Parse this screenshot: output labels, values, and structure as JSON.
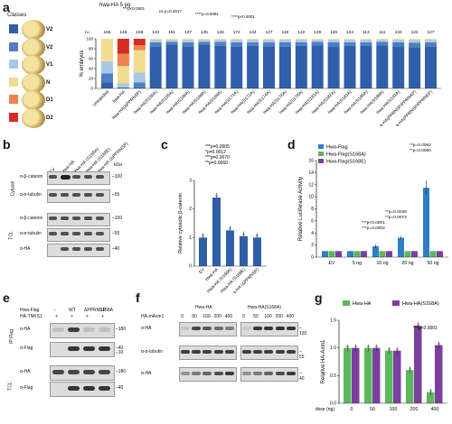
{
  "panel_a": {
    "label": "a",
    "classes_title": "Classes",
    "construct_title": "hwa-HA 5 pg",
    "classes": [
      {
        "name": "V2",
        "color": "#2f5fa8"
      },
      {
        "name": "V2",
        "color": "#4f7fc4"
      },
      {
        "name": "V1",
        "color": "#a8c8e4"
      },
      {
        "name": "N",
        "color": "#f2dc8e"
      },
      {
        "name": "D1",
        "color": "#ef8250"
      },
      {
        "name": "D2",
        "color": "#d62d20"
      }
    ],
    "pvalue_labels": [
      "***p<0.0001",
      "ns p=0.4917",
      "****p=0.0091",
      "****p<0.0001"
    ]
  },
  "chart_data": [
    {
      "type": "bar",
      "stacked": true,
      "ylabel": "% embryos",
      "ylim": [
        0,
        100
      ],
      "n_prefix": "n=",
      "n": [
        165,
        148,
        156,
        143,
        151,
        137,
        135,
        126,
        172,
        134,
        127,
        119,
        122,
        129,
        126,
        134,
        113,
        111,
        134,
        122,
        127
      ],
      "categories": [
        "Uninjected",
        "hwa-HA",
        "hwa-HA(ΔPPRNSP)",
        "hwa-HA(S156A)",
        "hwa-HA(S165A)",
        "hwa-HA(S166A)",
        "hwa-HA(S168A)",
        "hwa-HA(S169A)",
        "hwa-HA(S171A)",
        "hwa-HA(S172A)",
        "hwa-HA(S174A)",
        "hwa-HA(S176A)",
        "hwa-HA(S178A)",
        "hwa-HA(S181A)",
        "hwa-HA(S182A)",
        "hwa-HA(S183A)",
        "hwa-HA(S185A)",
        "hwa-HA(S188A)",
        "hwa-HA(S191A)",
        "hwa-HA(PPRNSP/PPRNAP)",
        "hwa-HA(PPRNSP/PPRNEP)"
      ],
      "series": [
        {
          "name": "V2",
          "color": "#2f5fa8",
          "values": [
            12,
            0,
            2,
            85,
            88,
            85,
            88,
            86,
            85,
            86,
            85,
            84,
            86,
            87,
            85,
            86,
            86,
            87,
            85,
            83,
            85
          ]
        },
        {
          "name": "V2",
          "color": "#4f7fc4",
          "values": [
            18,
            2,
            10,
            8,
            6,
            8,
            6,
            8,
            8,
            7,
            8,
            9,
            7,
            7,
            8,
            7,
            7,
            7,
            8,
            9,
            8
          ]
        },
        {
          "name": "V1",
          "color": "#a8c8e4",
          "values": [
            25,
            8,
            20,
            5,
            4,
            5,
            4,
            4,
            5,
            5,
            5,
            5,
            5,
            4,
            5,
            5,
            5,
            4,
            5,
            6,
            5
          ]
        },
        {
          "name": "N",
          "color": "#f2dc8e",
          "values": [
            45,
            35,
            45,
            2,
            2,
            2,
            2,
            2,
            2,
            2,
            2,
            2,
            2,
            2,
            2,
            2,
            2,
            2,
            2,
            2,
            2
          ]
        },
        {
          "name": "D1",
          "color": "#ef8250",
          "values": [
            0,
            25,
            10,
            0,
            0,
            0,
            0,
            0,
            0,
            0,
            0,
            0,
            0,
            0,
            0,
            0,
            0,
            0,
            0,
            0,
            0
          ]
        },
        {
          "name": "D2",
          "color": "#d62d20",
          "values": [
            0,
            30,
            13,
            0,
            0,
            0,
            0,
            0,
            0,
            0,
            0,
            0,
            0,
            0,
            0,
            0,
            0,
            0,
            0,
            0,
            0
          ]
        }
      ]
    },
    {
      "type": "bar",
      "ylabel": "Relative cytosolic β-catenin",
      "ylim": [
        0,
        3
      ],
      "yticks": [
        "0",
        "1",
        "2",
        "3"
      ],
      "categories": [
        "EV",
        "Hwa-HA",
        "Hwa-HA (S168A)",
        "Hwa-HA (S168E)",
        "Hwa-HA (ΔPPRNSP)"
      ],
      "values": [
        1.0,
        2.4,
        1.25,
        1.05,
        1.0
      ],
      "color": "#2f5fa8",
      "annotations": [
        "***p=0.0005",
        "*p=0.0012",
        "***p=0.0070",
        "**p=0.0060"
      ]
    },
    {
      "type": "bar",
      "ylabel": "Relative Luciferase Activity",
      "ylim": [
        0,
        16
      ],
      "yticks": [
        "0",
        "2",
        "4",
        "6",
        "8",
        "10",
        "12",
        "14",
        "16"
      ],
      "categories": [
        "EV",
        "5 ng",
        "10 ng",
        "20 ng",
        "50 ng"
      ],
      "series": [
        {
          "name": "Hwa-Flag",
          "color": "#2f7fc6",
          "values": [
            1.0,
            1.0,
            1.8,
            3.2,
            11.5
          ]
        },
        {
          "name": "Hwa-Flag(S168A)",
          "color": "#5cb85c",
          "values": [
            1.0,
            1.0,
            1.0,
            1.0,
            1.0
          ]
        },
        {
          "name": "Hwa-Flag(S168E)",
          "color": "#7b3fa0",
          "values": [
            1.0,
            1.0,
            1.0,
            1.0,
            1.0
          ]
        }
      ],
      "annotations": [
        "**p=0.0062",
        "**p=0.0060",
        "**p=0.0045",
        "**p=0.0072",
        "***p<0.0001",
        "***p=0.0002"
      ]
    },
    {
      "type": "bar",
      "ylabel": "Relative HA-Axin1",
      "xlabel": "dose (ng)",
      "ylim": [
        0,
        1.5
      ],
      "yticks": [
        "0.0",
        "0.5",
        "1.0",
        "1.5"
      ],
      "categories": [
        "0",
        "50",
        "100",
        "200",
        "400"
      ],
      "series": [
        {
          "name": "Hwa-HA",
          "color": "#5cb85c",
          "values": [
            1.0,
            1.0,
            0.95,
            0.6,
            0.2
          ]
        },
        {
          "name": "Hwa-HA(S168A)",
          "color": "#7b3fa0",
          "values": [
            1.0,
            1.0,
            0.95,
            1.4,
            1.05
          ]
        }
      ],
      "annotations": [
        "***p<0.0001"
      ]
    }
  ],
  "panel_b": {
    "label": "b",
    "lanes": [
      "EV",
      "Hwa-HA",
      "Hwa-HA (S168A)",
      "Hwa-HA (S168E)",
      "Hwa-HA (ΔPPRNSP)"
    ],
    "kda": "kDa",
    "section_cytosol": "Cytosol",
    "section_tcl": "TCL",
    "rows": [
      {
        "label": "α-β-catenin",
        "mw": "100"
      },
      {
        "label": "α-α-tubulin",
        "mw": "55"
      },
      {
        "label": "α-β-catenin",
        "mw": "100"
      },
      {
        "label": "α-α-tubulin",
        "mw": "55"
      },
      {
        "label": "α-HA",
        "mw": "40"
      }
    ]
  },
  "panel_c": {
    "label": "c"
  },
  "panel_d": {
    "label": "d"
  },
  "panel_e": {
    "label": "e",
    "row1_label": "Hwa-Flag",
    "row2_label": "HA-TNKS1",
    "lanes": [
      "−",
      "WT",
      "ΔPPRNSP",
      "S168A"
    ],
    "row2_signs": [
      "+",
      "+",
      "+",
      "+"
    ],
    "section_ip": "IP:Flag",
    "section_tcl": "TCL",
    "blots": [
      {
        "label": "α-HA",
        "mw": "180"
      },
      {
        "label": "α-Flag",
        "mw": "40"
      },
      {
        "label": "α-HA",
        "mw": "180"
      },
      {
        "label": "α-Flag",
        "mw": "40"
      }
    ],
    "mw_extra": "10"
  },
  "panel_f": {
    "label": "f",
    "group1": "Hwa-HA",
    "group2": "Hwa-HA(S168A)",
    "dose_label": "HA-mAxin1",
    "doses": [
      "0",
      "50",
      "100",
      "200",
      "400",
      "0",
      "50",
      "100",
      "200",
      "400"
    ],
    "blots": [
      {
        "label": "α-HA",
        "mw": "120"
      },
      {
        "label": "α-α-tubulin",
        "mw": "55"
      },
      {
        "label": "α-HA",
        "mw": "40"
      }
    ]
  },
  "panel_g": {
    "label": "g"
  }
}
